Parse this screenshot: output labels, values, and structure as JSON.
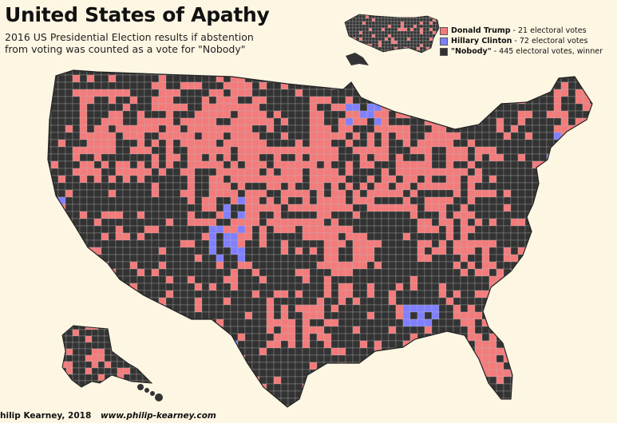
{
  "title": "United States of Apathy",
  "subtitle_lines": [
    "2016 US Presidential Election results if abstention",
    "from voting was counted as a vote for \"Nobody\""
  ],
  "legend": [
    {
      "label": "Donald Trump",
      "value": " - 21 electoral votes",
      "color": "#f47b7b"
    },
    {
      "label": "Hillary Clinton",
      "value": " - 72 electoral votes",
      "color": "#8080ff"
    },
    {
      "label": "\"Nobody\"",
      "value": " - 445 electoral votes, winner",
      "color": "#333333"
    }
  ],
  "credit": {
    "author": "hilip Kearney, 2018",
    "url": "www.philip-kearney.com"
  },
  "colors": {
    "background": "#fdf6e3",
    "trump": "#f47b7b",
    "clinton": "#8080ff",
    "nobody": "#333333",
    "border": "#b8b8b8"
  }
}
